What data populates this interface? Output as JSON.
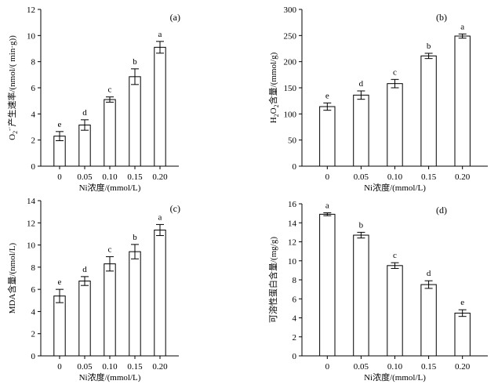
{
  "chart_data": [
    {
      "type": "bar",
      "tag": "(a)",
      "categories": [
        "0",
        "0.05",
        "0.10",
        "0.15",
        "0.20"
      ],
      "values": [
        2.3,
        3.15,
        5.1,
        6.85,
        9.1
      ],
      "errors": [
        0.35,
        0.4,
        0.2,
        0.6,
        0.45
      ],
      "letters": [
        "e",
        "d",
        "c",
        "b",
        "a"
      ],
      "ylabel_parts": [
        "O",
        "2",
        "-",
        "·",
        "产生速率/(nmol/( min·g))"
      ],
      "xlabel": "Ni浓度/(mmol/L)",
      "ylim": [
        0,
        12
      ],
      "yticks": [
        0,
        2,
        4,
        6,
        8,
        10,
        12
      ]
    },
    {
      "type": "bar",
      "tag": "(b)",
      "categories": [
        "0",
        "0.05",
        "0.10",
        "0.15",
        "0.20"
      ],
      "values": [
        114,
        136,
        158,
        211,
        249
      ],
      "errors": [
        7,
        8,
        8,
        5,
        4
      ],
      "letters": [
        "e",
        "d",
        "c",
        "b",
        "a"
      ],
      "ylabel_parts": [
        "H",
        "2",
        "O",
        "2",
        "含量/(mmol/g)"
      ],
      "xlabel": "Ni浓度/(mmol/L)",
      "ylim": [
        0,
        300
      ],
      "yticks": [
        0,
        50,
        100,
        150,
        200,
        250,
        300
      ]
    },
    {
      "type": "bar",
      "tag": "(c)",
      "categories": [
        "0",
        "0.05",
        "0.10",
        "0.15",
        "0.20"
      ],
      "values": [
        5.4,
        6.75,
        8.3,
        9.4,
        11.35
      ],
      "errors": [
        0.6,
        0.4,
        0.65,
        0.65,
        0.5
      ],
      "letters": [
        "e",
        "d",
        "c",
        "b",
        "a"
      ],
      "ylabel": "MDA含量/(nmol/L)",
      "xlabel": "Ni浓度/(mmol/L)",
      "ylim": [
        0,
        14
      ],
      "yticks": [
        0,
        2,
        4,
        6,
        8,
        10,
        12,
        14
      ]
    },
    {
      "type": "bar",
      "tag": "(d)",
      "categories": [
        "0",
        "0.05",
        "0.10",
        "0.15",
        "0.20"
      ],
      "values": [
        14.9,
        12.7,
        9.5,
        7.5,
        4.5
      ],
      "errors": [
        0.15,
        0.3,
        0.3,
        0.4,
        0.35
      ],
      "letters": [
        "a",
        "b",
        "c",
        "d",
        "e"
      ],
      "ylabel": "可溶性蛋白含量/(mg/g)",
      "xlabel": "Ni浓度/(mmol/L)",
      "ylim": [
        0,
        16
      ],
      "yticks": [
        0,
        2,
        4,
        6,
        8,
        10,
        12,
        14,
        16
      ]
    }
  ]
}
